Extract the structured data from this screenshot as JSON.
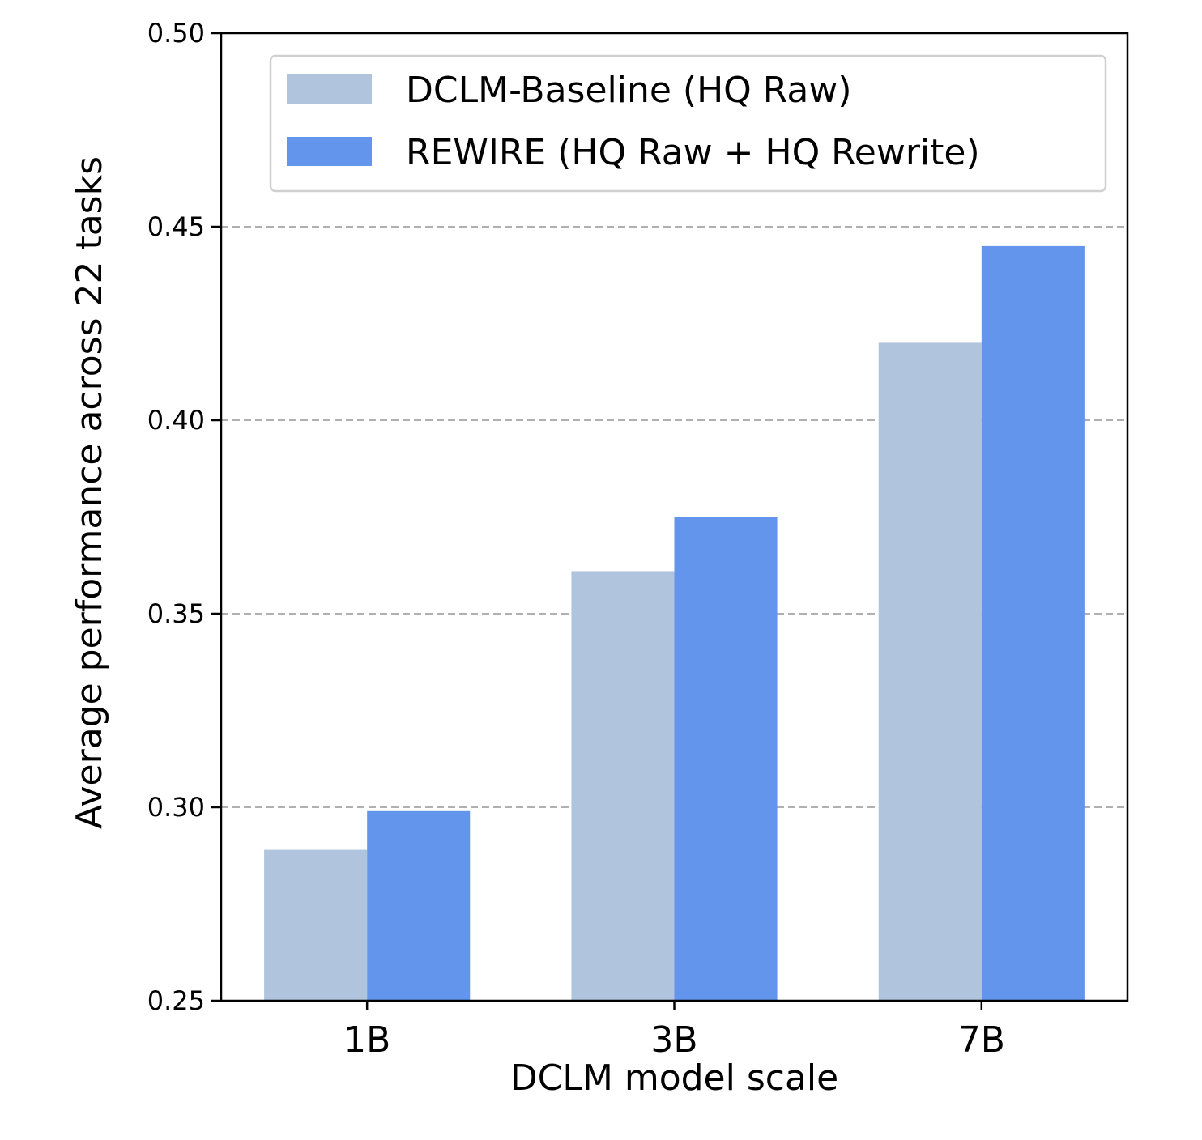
{
  "chart_data": {
    "type": "bar",
    "title": "",
    "xlabel": "DCLM model scale",
    "ylabel": "Average performance across 22 tasks",
    "categories": [
      "1B",
      "3B",
      "7B"
    ],
    "series": [
      {
        "name": "DCLM-Baseline (HQ Raw)",
        "color": "#b0c4de",
        "values": [
          0.289,
          0.361,
          0.42
        ]
      },
      {
        "name": "REWIRE (HQ Raw + HQ Rewrite)",
        "color": "#6495ed",
        "values": [
          0.299,
          0.375,
          0.445
        ]
      }
    ],
    "ylim": [
      0.25,
      0.5
    ],
    "yticks": [
      "0.25",
      "0.30",
      "0.35",
      "0.40",
      "0.45",
      "0.50"
    ],
    "grid": "horizontal dashed",
    "legend_position": "top-right"
  }
}
